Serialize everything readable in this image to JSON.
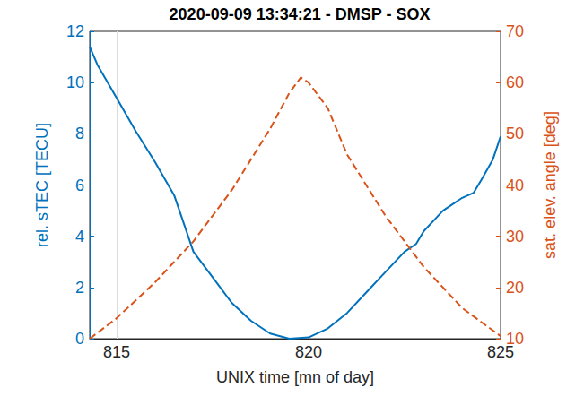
{
  "chart_data": {
    "type": "line",
    "title": "2020-09-09 13:34:21 - DMSP - SOX",
    "x_label": "UNIX time [mn of day]",
    "y_label": "rel. sTEC [TECU]",
    "y2_label": "sat. elev. angle [deg]",
    "xlim": [
      814.3,
      825
    ],
    "xticks": [
      815,
      820,
      825
    ],
    "ylim": [
      0,
      12
    ],
    "yticks": [
      0,
      2,
      4,
      6,
      8,
      10,
      12
    ],
    "y2lim": [
      10,
      70
    ],
    "y2ticks": [
      10,
      20,
      30,
      40,
      50,
      60,
      70
    ],
    "grid": "x",
    "series": [
      {
        "color": "#0072bd",
        "line_style": "solid",
        "axis": "y",
        "x": [
          814.3,
          814.5,
          815,
          815.5,
          816,
          816.5,
          817,
          817.5,
          818,
          818.5,
          819,
          819.5,
          820,
          820.5,
          821,
          821.5,
          822,
          822.5,
          822.8,
          823,
          823.5,
          824,
          824.3,
          824.5,
          824.8,
          825
        ],
        "values": [
          11.4,
          10.7,
          9.4,
          8.1,
          6.9,
          5.6,
          3.4,
          2.4,
          1.4,
          0.7,
          0.2,
          0.0,
          0.05,
          0.4,
          1.0,
          1.8,
          2.6,
          3.4,
          3.7,
          4.2,
          5.0,
          5.5,
          5.7,
          6.2,
          7.0,
          7.9
        ]
      },
      {
        "color": "#d95319",
        "line_style": "dashed",
        "axis": "y2",
        "x": [
          814.3,
          815,
          816,
          817,
          818,
          819,
          819.5,
          819.8,
          820,
          820.5,
          821,
          822,
          823,
          824,
          825
        ],
        "values": [
          10,
          14,
          21,
          29,
          39,
          51,
          58,
          61,
          60,
          55,
          46,
          34,
          24,
          16,
          10.5
        ]
      }
    ]
  }
}
